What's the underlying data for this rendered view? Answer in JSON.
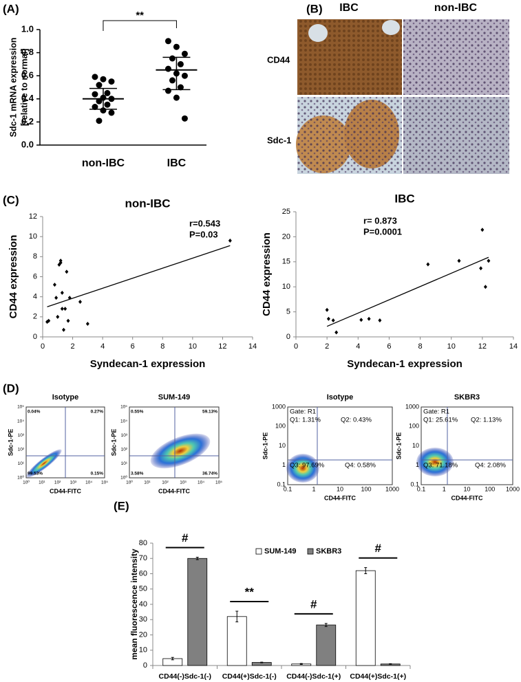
{
  "panel_labels": [
    "(A)",
    "(B)",
    "(C)",
    "(D)",
    "(E)"
  ],
  "chart_data": [
    {
      "type": "dotplot",
      "ylabel": [
        "Sdc-1 mRNA expression",
        "[relative to normal]"
      ],
      "categories": [
        "non-IBC",
        "IBC"
      ],
      "groups": [
        {
          "values": [
            0.59,
            0.57,
            0.55,
            0.52,
            0.45,
            0.44,
            0.41,
            0.4,
            0.38,
            0.35,
            0.33,
            0.3,
            0.28,
            0.21
          ],
          "mean": 0.4,
          "upper": 0.49,
          "lower": 0.31
        },
        {
          "values": [
            0.9,
            0.85,
            0.79,
            0.75,
            0.7,
            0.66,
            0.62,
            0.6,
            0.56,
            0.5,
            0.47,
            0.41,
            0.23
          ],
          "mean": 0.65,
          "upper": 0.76,
          "lower": 0.48
        }
      ],
      "annotation": "**",
      "color": "#000000",
      "ylim": [
        0,
        1.0
      ],
      "yticks": [
        {
          "value": 0,
          "label": "0.0"
        },
        {
          "value": 0.2,
          "label": "0.2"
        },
        {
          "value": 0.4,
          "label": "0.4"
        },
        {
          "value": 0.6,
          "label": "0.6"
        },
        {
          "value": 0.8,
          "label": "0.8"
        },
        {
          "value": 1.0,
          "label": "1.0"
        }
      ]
    },
    {
      "type": "scatter",
      "title": "non-IBC",
      "xlabel": "Syndecan-1 expression",
      "ylabel": "CD44 expression",
      "x": [
        0.3,
        0.4,
        0.8,
        0.9,
        1.0,
        1.1,
        1.2,
        1.2,
        1.3,
        1.3,
        1.4,
        1.5,
        1.6,
        1.7,
        1.8,
        2.5,
        3.0,
        12.5
      ],
      "y": [
        1.5,
        1.6,
        5.2,
        3.9,
        2.0,
        7.2,
        7.6,
        7.4,
        4.4,
        2.8,
        0.7,
        2.8,
        6.5,
        1.6,
        3.9,
        3.5,
        1.3,
        9.6
      ],
      "trendline": {
        "x": [
          0.3,
          12.5
        ],
        "y": [
          3.0,
          9.1
        ]
      },
      "annotations": [
        "r=0.543",
        "P=0.03"
      ],
      "color": "#000000",
      "xlim": [
        0,
        14
      ],
      "xticks": [
        0,
        2,
        4,
        6,
        8,
        10,
        12,
        14
      ],
      "ylim": [
        0,
        12
      ],
      "yticks": [
        0,
        2,
        4,
        6,
        8,
        10,
        12
      ]
    },
    {
      "type": "scatter",
      "title": "IBC",
      "xlabel": "Syndecan-1 expression",
      "ylabel": "CD44 expression",
      "x": [
        2.0,
        2.1,
        2.4,
        2.6,
        4.2,
        4.7,
        5.4,
        8.5,
        10.5,
        11.9,
        12.0,
        12.2,
        12.4
      ],
      "y": [
        5.4,
        3.6,
        3.3,
        0.9,
        3.4,
        3.6,
        3.3,
        14.5,
        15.2,
        13.7,
        21.4,
        10.0,
        15.2
      ],
      "trendline": {
        "x": [
          2.0,
          12.4
        ],
        "y": [
          2.1,
          15.9
        ]
      },
      "annotations": [
        "r= 0.873",
        "P=0.0001"
      ],
      "color": "#000000",
      "xlim": [
        0,
        14
      ],
      "xticks": [
        0,
        2,
        4,
        6,
        8,
        10,
        12,
        14
      ],
      "ylim": [
        0,
        25
      ],
      "yticks": [
        0,
        5,
        10,
        15,
        20,
        25
      ]
    },
    {
      "type": "bar",
      "ylabel": "mean fluorescence intensity",
      "categories": [
        "CD44(-)Sdc-1(-)",
        "CD44(+)Sdc-1(-)",
        "CD44(-)Sdc-1(+)",
        "CD44(+)Sdc-1(+)"
      ],
      "series": [
        {
          "name": "SUM-149",
          "color": "#ffffff",
          "values": [
            4.5,
            32,
            1,
            62
          ],
          "errors": [
            0.8,
            3.5,
            0.3,
            2
          ]
        },
        {
          "name": "SKBR3",
          "color": "#808080",
          "values": [
            70,
            2,
            26.5,
            1
          ],
          "errors": [
            0.8,
            0.2,
            1,
            0.2
          ]
        }
      ],
      "annotations": [
        "#",
        "**",
        "#",
        "#"
      ],
      "ylim": [
        0,
        80
      ],
      "yticks": [
        0,
        10,
        20,
        30,
        40,
        50,
        60,
        70,
        80
      ]
    }
  ],
  "panel_b": {
    "columns": [
      "IBC",
      "non-IBC"
    ],
    "rows": [
      "CD44",
      "Sdc-1"
    ]
  },
  "panel_d": {
    "plots": [
      {
        "title": "Isotype",
        "xlabel": "CD44-FITC",
        "ylabel": "Sdc-1-PE",
        "quadrants": [
          "0.04%",
          "0.27%",
          "99.53%",
          "0.15%"
        ],
        "xticks": [
          "10⁰",
          "10¹",
          "10²",
          "10³",
          "10⁴",
          "10⁵"
        ],
        "yticks": [
          "10⁰",
          "10¹",
          "10²",
          "10³",
          "10⁴",
          "10⁵"
        ]
      },
      {
        "title": "SUM-149",
        "xlabel": "CD44-FITC",
        "ylabel": "Sdc-1-PE",
        "quadrants": [
          "0.55%",
          "59.13%",
          "3.58%",
          "36.74%"
        ],
        "xticks": [
          "10⁰",
          "10¹",
          "10²",
          "10³",
          "10⁴",
          "10⁵"
        ],
        "yticks": [
          "10⁰",
          "10¹",
          "10²",
          "10³",
          "10⁴",
          "10⁵"
        ]
      },
      {
        "title": "Isotype",
        "gate": "Gate: R1",
        "xlabel": "CD44-FITC",
        "ylabel": "Sdc-1-PE",
        "quadrants": [
          "Q1: 1.31%",
          "Q2: 0.43%",
          "Q3: 97.69%",
          "Q4: 0.58%"
        ],
        "xticks": [
          "0.1",
          "1",
          "10",
          "100",
          "1000"
        ],
        "yticks": [
          "0.1",
          "1",
          "10",
          "100",
          "1000"
        ]
      },
      {
        "title": "SKBR3",
        "gate": "Gate: R1",
        "xlabel": "CD44-FITC",
        "ylabel": "Sdc-1-PE",
        "quadrants": [
          "Q1: 25.61%",
          "Q2: 1.13%",
          "Q3: 71.18%",
          "Q4: 2.08%"
        ],
        "xticks": [
          "0.1",
          "1",
          "10",
          "100",
          "1000"
        ],
        "yticks": [
          "0.1",
          "1",
          "10",
          "100",
          "1000"
        ]
      }
    ]
  }
}
